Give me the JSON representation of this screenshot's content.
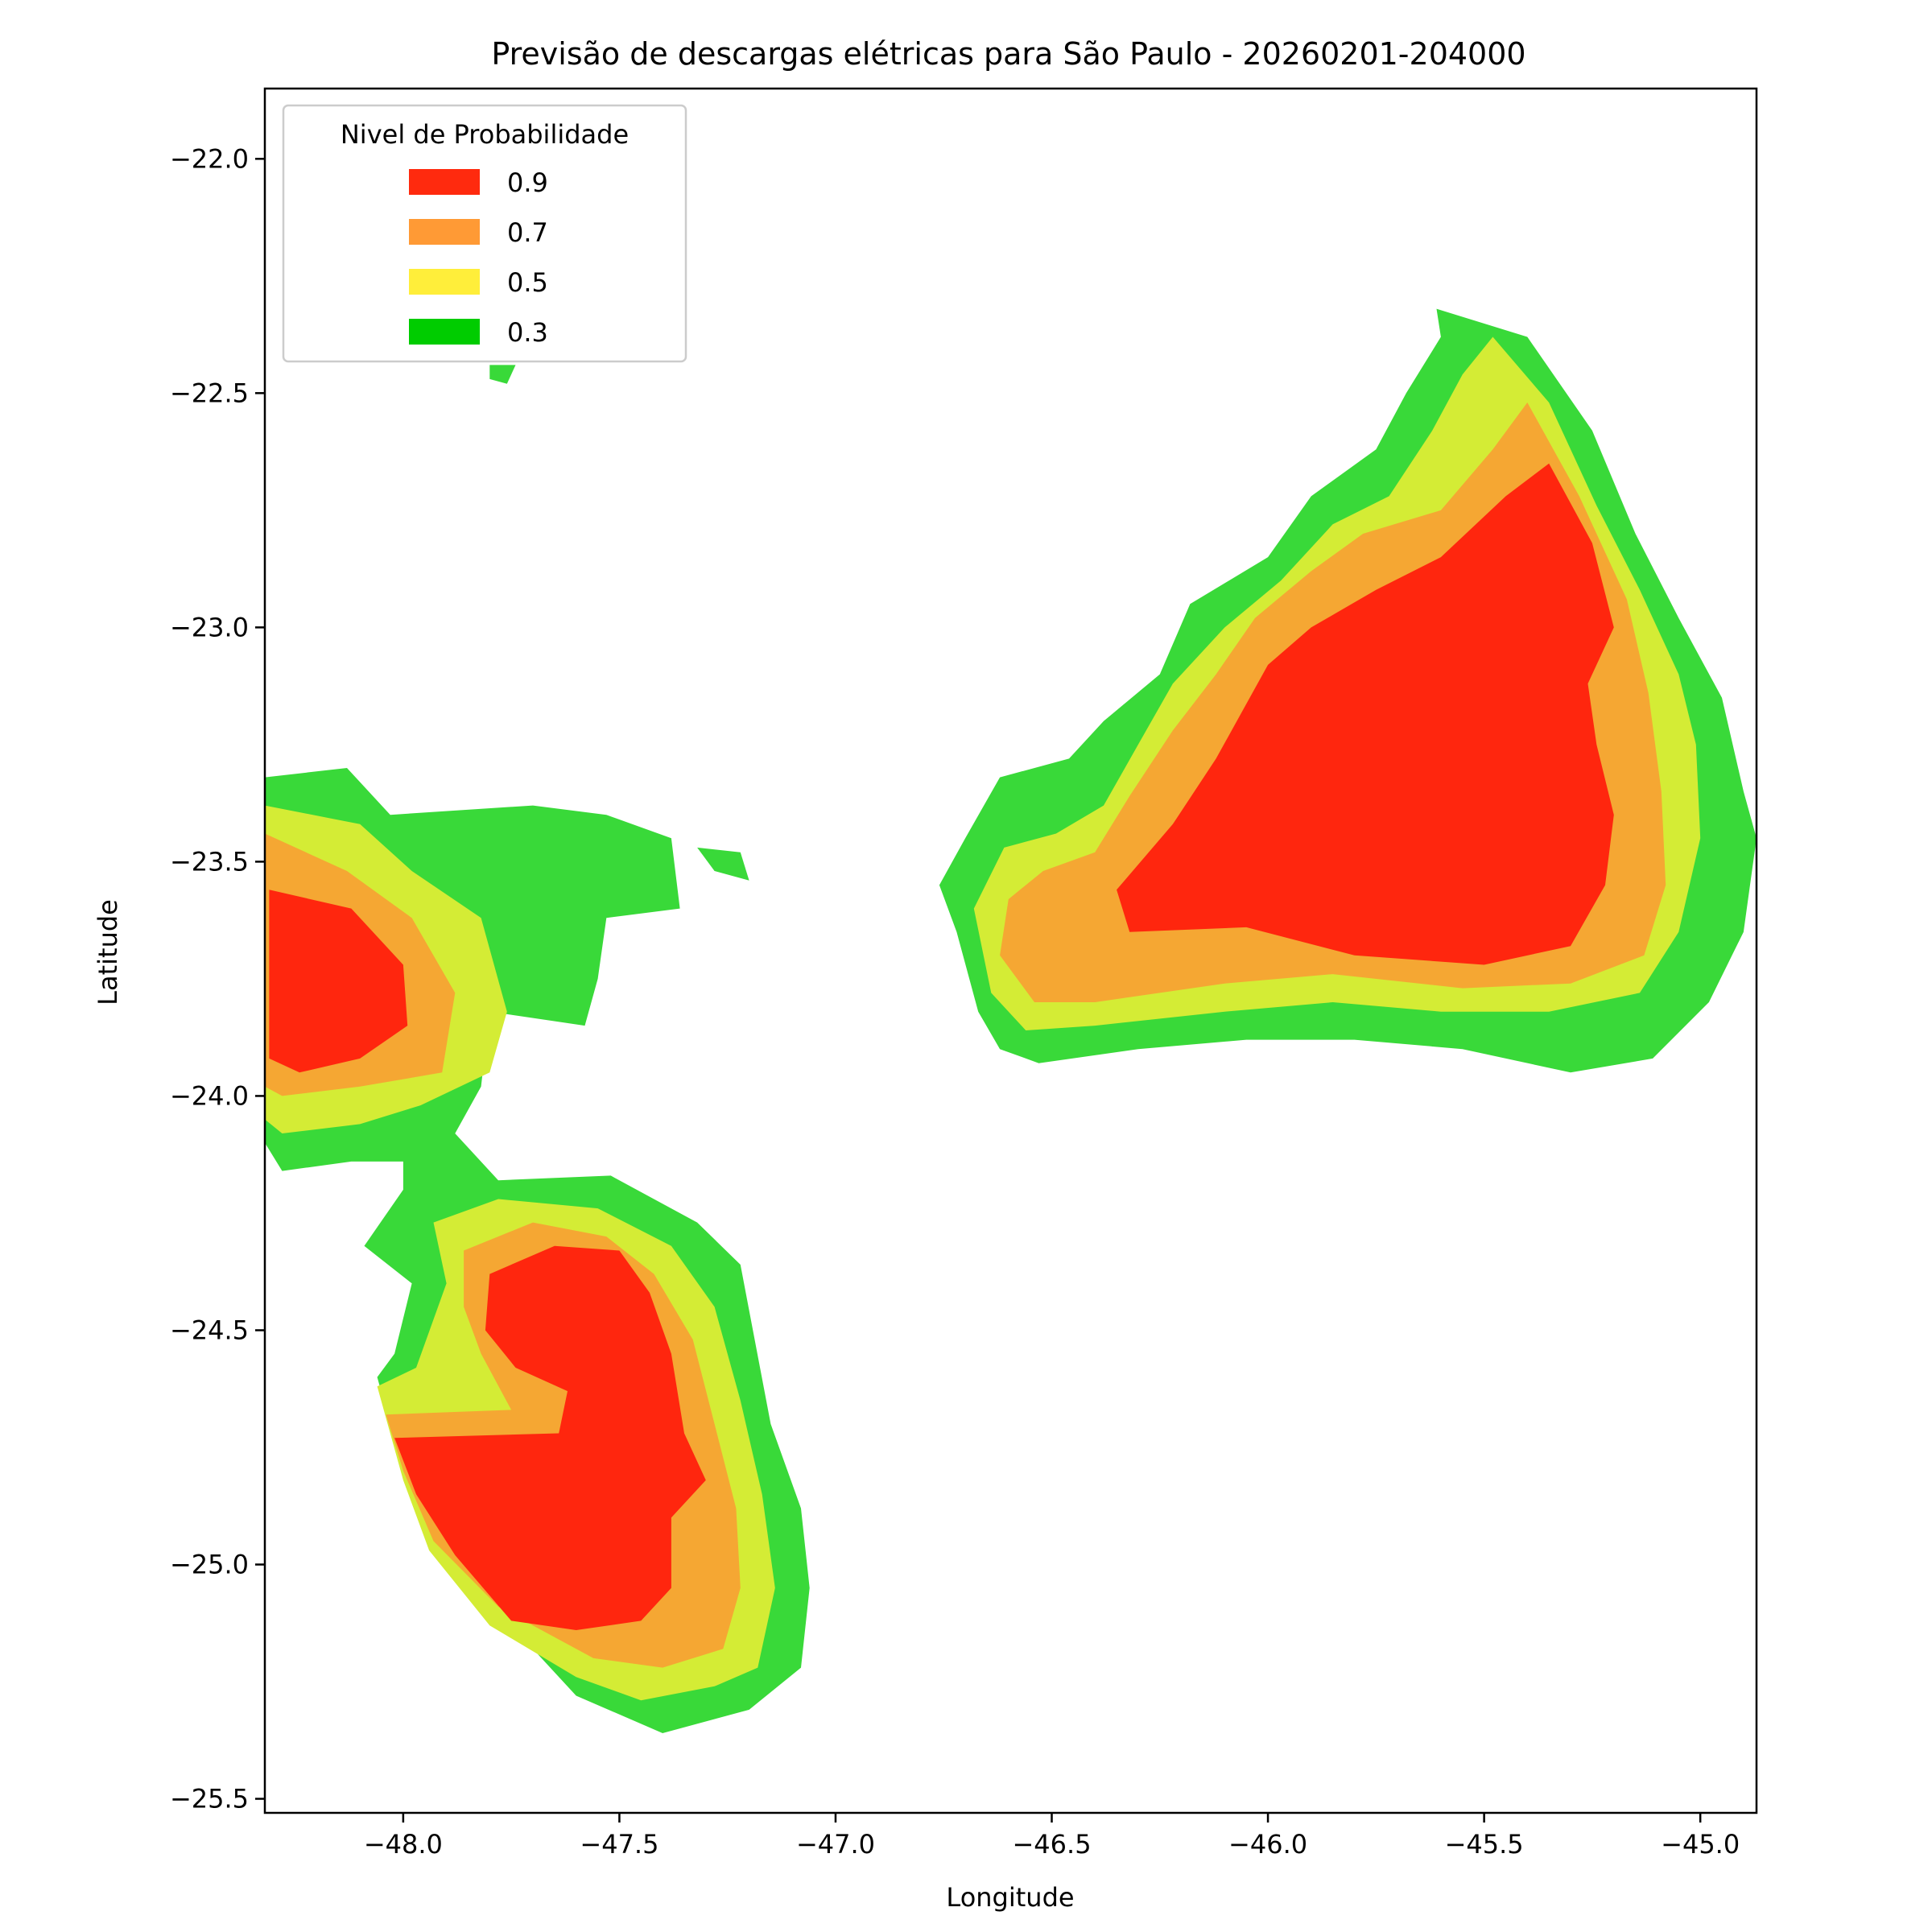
{
  "chart_data": {
    "type": "contour",
    "title": "Previsão de descargas elétricas para São Paulo - 20260201-204000",
    "xlabel": "Longitude",
    "ylabel": "Latitude",
    "xlim": [
      -48.32,
      -44.87
    ],
    "ylim": [
      -25.53,
      -21.85
    ],
    "xticks": [
      -48.0,
      -47.5,
      -47.0,
      -46.5,
      -46.0,
      -45.5,
      -45.0
    ],
    "xtick_labels": [
      "−48.0",
      "−47.5",
      "−47.0",
      "−46.5",
      "−46.0",
      "−45.5",
      "−45.0"
    ],
    "yticks": [
      -22.0,
      -22.5,
      -23.0,
      -23.5,
      -24.0,
      -24.5,
      -25.0,
      -25.5
    ],
    "ytick_labels": [
      "−22.0",
      "−22.5",
      "−23.0",
      "−23.5",
      "−24.0",
      "−24.5",
      "−25.0",
      "−25.5"
    ],
    "grid": false,
    "legend": {
      "title": "Nivel de Probabilidade",
      "placement": "upper-left",
      "entries": [
        {
          "label": "0.9",
          "color": "#ff2a0e"
        },
        {
          "label": "0.7",
          "color": "#ff9a35"
        },
        {
          "label": "0.5",
          "color": "#ffee3a"
        },
        {
          "label": "0.3",
          "color": "#00cc00"
        }
      ]
    },
    "fill_colors": {
      "0.3": "#39d939",
      "0.5": "#d4ec35",
      "0.7": "#f5a733",
      "0.9": "#ff260e"
    },
    "regions": [
      {
        "name": "southwest-cell",
        "levels": {
          "0.3": [
            [
              -48.32,
              -23.32
            ],
            [
              -48.13,
              -23.3
            ],
            [
              -48.03,
              -23.4
            ],
            [
              -47.7,
              -23.38
            ],
            [
              -47.53,
              -23.4
            ],
            [
              -47.38,
              -23.45
            ],
            [
              -47.36,
              -23.6
            ],
            [
              -47.53,
              -23.62
            ],
            [
              -47.55,
              -23.75
            ],
            [
              -47.58,
              -23.85
            ],
            [
              -47.8,
              -23.82
            ],
            [
              -47.82,
              -23.98
            ],
            [
              -47.88,
              -24.08
            ],
            [
              -47.78,
              -24.18
            ],
            [
              -47.52,
              -24.17
            ],
            [
              -47.32,
              -24.27
            ],
            [
              -47.22,
              -24.36
            ],
            [
              -47.15,
              -24.7
            ],
            [
              -47.08,
              -24.88
            ],
            [
              -47.06,
              -25.05
            ],
            [
              -47.08,
              -25.22
            ],
            [
              -47.2,
              -25.31
            ],
            [
              -47.4,
              -25.36
            ],
            [
              -47.6,
              -25.28
            ],
            [
              -47.78,
              -25.1
            ],
            [
              -47.91,
              -24.95
            ],
            [
              -48.0,
              -24.8
            ],
            [
              -48.06,
              -24.6
            ],
            [
              -48.02,
              -24.55
            ],
            [
              -47.98,
              -24.4
            ],
            [
              -48.09,
              -24.32
            ],
            [
              -48.0,
              -24.2
            ],
            [
              -48.0,
              -24.14
            ],
            [
              -48.12,
              -24.14
            ],
            [
              -48.28,
              -24.16
            ],
            [
              -48.32,
              -24.1
            ]
          ],
          "0.5": [
            [
              -48.32,
              -23.38
            ],
            [
              -48.1,
              -23.42
            ],
            [
              -47.98,
              -23.52
            ],
            [
              -47.82,
              -23.62
            ],
            [
              -47.76,
              -23.82
            ],
            [
              -47.8,
              -23.95
            ],
            [
              -47.96,
              -24.02
            ],
            [
              -48.1,
              -24.06
            ],
            [
              -48.28,
              -24.08
            ],
            [
              -48.32,
              -24.05
            ]
          ],
          "0.7": [
            [
              -48.32,
              -23.44
            ],
            [
              -48.13,
              -23.52
            ],
            [
              -47.98,
              -23.62
            ],
            [
              -47.88,
              -23.78
            ],
            [
              -47.91,
              -23.95
            ],
            [
              -48.1,
              -23.98
            ],
            [
              -48.28,
              -24.0
            ],
            [
              -48.32,
              -23.98
            ]
          ],
          "0.9": [
            [
              -48.31,
              -23.56
            ],
            [
              -48.12,
              -23.6
            ],
            [
              -48.0,
              -23.72
            ],
            [
              -47.99,
              -23.85
            ],
            [
              -48.1,
              -23.92
            ],
            [
              -48.24,
              -23.95
            ],
            [
              -48.31,
              -23.92
            ]
          ]
        }
      },
      {
        "name": "south-cell",
        "levels": {
          "0.5": [
            [
              -47.93,
              -24.27
            ],
            [
              -47.78,
              -24.22
            ],
            [
              -47.55,
              -24.24
            ],
            [
              -47.38,
              -24.32
            ],
            [
              -47.28,
              -24.45
            ],
            [
              -47.22,
              -24.65
            ],
            [
              -47.17,
              -24.85
            ],
            [
              -47.14,
              -25.05
            ],
            [
              -47.18,
              -25.22
            ],
            [
              -47.28,
              -25.26
            ],
            [
              -47.45,
              -25.29
            ],
            [
              -47.6,
              -25.24
            ],
            [
              -47.8,
              -25.13
            ],
            [
              -47.94,
              -24.97
            ],
            [
              -48.0,
              -24.82
            ],
            [
              -48.06,
              -24.62
            ],
            [
              -47.97,
              -24.58
            ],
            [
              -47.9,
              -24.4
            ]
          ],
          "0.7": [
            [
              -47.86,
              -24.33
            ],
            [
              -47.7,
              -24.27
            ],
            [
              -47.53,
              -24.3
            ],
            [
              -47.42,
              -24.38
            ],
            [
              -47.33,
              -24.52
            ],
            [
              -47.28,
              -24.7
            ],
            [
              -47.23,
              -24.88
            ],
            [
              -47.22,
              -25.05
            ],
            [
              -47.26,
              -25.18
            ],
            [
              -47.4,
              -25.22
            ],
            [
              -47.56,
              -25.2
            ],
            [
              -47.78,
              -25.09
            ],
            [
              -47.93,
              -24.95
            ],
            [
              -48.0,
              -24.8
            ],
            [
              -48.04,
              -24.68
            ],
            [
              -47.75,
              -24.67
            ],
            [
              -47.82,
              -24.55
            ],
            [
              -47.86,
              -24.45
            ]
          ],
          "0.9": [
            [
              -47.8,
              -24.38
            ],
            [
              -47.65,
              -24.32
            ],
            [
              -47.5,
              -24.33
            ],
            [
              -47.43,
              -24.42
            ],
            [
              -47.38,
              -24.55
            ],
            [
              -47.35,
              -24.72
            ],
            [
              -47.3,
              -24.82
            ],
            [
              -47.38,
              -24.9
            ],
            [
              -47.38,
              -25.05
            ],
            [
              -47.45,
              -25.12
            ],
            [
              -47.6,
              -25.14
            ],
            [
              -47.75,
              -25.12
            ],
            [
              -47.88,
              -24.98
            ],
            [
              -47.97,
              -24.85
            ],
            [
              -48.02,
              -24.73
            ],
            [
              -47.64,
              -24.72
            ],
            [
              -47.62,
              -24.63
            ],
            [
              -47.74,
              -24.58
            ],
            [
              -47.81,
              -24.5
            ]
          ]
        }
      },
      {
        "name": "east-cell",
        "levels": {
          "0.3": [
            [
              -45.61,
              -22.32
            ],
            [
              -45.4,
              -22.38
            ],
            [
              -45.25,
              -22.58
            ],
            [
              -45.15,
              -22.8
            ],
            [
              -45.05,
              -22.98
            ],
            [
              -44.95,
              -23.15
            ],
            [
              -44.9,
              -23.35
            ],
            [
              -44.87,
              -23.45
            ],
            [
              -44.9,
              -23.65
            ],
            [
              -44.98,
              -23.8
            ],
            [
              -45.11,
              -23.92
            ],
            [
              -45.3,
              -23.95
            ],
            [
              -45.55,
              -23.9
            ],
            [
              -45.8,
              -23.88
            ],
            [
              -46.05,
              -23.88
            ],
            [
              -46.3,
              -23.9
            ],
            [
              -46.53,
              -23.93
            ],
            [
              -46.62,
              -23.9
            ],
            [
              -46.67,
              -23.82
            ],
            [
              -46.72,
              -23.65
            ],
            [
              -46.76,
              -23.55
            ],
            [
              -46.7,
              -23.45
            ],
            [
              -46.62,
              -23.32
            ],
            [
              -46.46,
              -23.28
            ],
            [
              -46.38,
              -23.2
            ],
            [
              -46.25,
              -23.1
            ],
            [
              -46.18,
              -22.95
            ],
            [
              -46.0,
              -22.85
            ],
            [
              -45.9,
              -22.72
            ],
            [
              -45.75,
              -22.62
            ],
            [
              -45.68,
              -22.5
            ],
            [
              -45.6,
              -22.38
            ]
          ],
          "0.5": [
            [
              -45.48,
              -22.38
            ],
            [
              -45.35,
              -22.52
            ],
            [
              -45.24,
              -22.74
            ],
            [
              -45.14,
              -22.92
            ],
            [
              -45.05,
              -23.1
            ],
            [
              -45.01,
              -23.25
            ],
            [
              -45.0,
              -23.45
            ],
            [
              -45.05,
              -23.65
            ],
            [
              -45.14,
              -23.78
            ],
            [
              -45.35,
              -23.82
            ],
            [
              -45.6,
              -23.82
            ],
            [
              -45.85,
              -23.8
            ],
            [
              -46.1,
              -23.82
            ],
            [
              -46.4,
              -23.85
            ],
            [
              -46.56,
              -23.86
            ],
            [
              -46.64,
              -23.78
            ],
            [
              -46.68,
              -23.6
            ],
            [
              -46.61,
              -23.47
            ],
            [
              -46.49,
              -23.44
            ],
            [
              -46.38,
              -23.38
            ],
            [
              -46.3,
              -23.25
            ],
            [
              -46.22,
              -23.12
            ],
            [
              -46.1,
              -23.0
            ],
            [
              -45.97,
              -22.9
            ],
            [
              -45.85,
              -22.78
            ],
            [
              -45.72,
              -22.72
            ],
            [
              -45.62,
              -22.58
            ],
            [
              -45.55,
              -22.46
            ]
          ],
          "0.7": [
            [
              -45.4,
              -22.52
            ],
            [
              -45.28,
              -22.72
            ],
            [
              -45.17,
              -22.94
            ],
            [
              -45.12,
              -23.14
            ],
            [
              -45.09,
              -23.35
            ],
            [
              -45.08,
              -23.55
            ],
            [
              -45.13,
              -23.7
            ],
            [
              -45.3,
              -23.76
            ],
            [
              -45.55,
              -23.77
            ],
            [
              -45.85,
              -23.74
            ],
            [
              -46.1,
              -23.76
            ],
            [
              -46.4,
              -23.8
            ],
            [
              -46.54,
              -23.8
            ],
            [
              -46.62,
              -23.7
            ],
            [
              -46.6,
              -23.58
            ],
            [
              -46.52,
              -23.52
            ],
            [
              -46.4,
              -23.48
            ],
            [
              -46.32,
              -23.36
            ],
            [
              -46.22,
              -23.22
            ],
            [
              -46.12,
              -23.1
            ],
            [
              -46.03,
              -22.98
            ],
            [
              -45.9,
              -22.88
            ],
            [
              -45.78,
              -22.8
            ],
            [
              -45.6,
              -22.75
            ],
            [
              -45.48,
              -22.62
            ]
          ],
          "0.9": [
            [
              -45.35,
              -22.65
            ],
            [
              -45.25,
              -22.82
            ],
            [
              -45.2,
              -23.0
            ],
            [
              -45.26,
              -23.12
            ],
            [
              -45.24,
              -23.25
            ],
            [
              -45.2,
              -23.4
            ],
            [
              -45.22,
              -23.55
            ],
            [
              -45.3,
              -23.68
            ],
            [
              -45.5,
              -23.72
            ],
            [
              -45.8,
              -23.7
            ],
            [
              -46.05,
              -23.64
            ],
            [
              -46.32,
              -23.65
            ],
            [
              -46.35,
              -23.56
            ],
            [
              -46.22,
              -23.42
            ],
            [
              -46.12,
              -23.28
            ],
            [
              -46.0,
              -23.08
            ],
            [
              -45.9,
              -23.0
            ],
            [
              -45.75,
              -22.92
            ],
            [
              -45.6,
              -22.85
            ],
            [
              -45.45,
              -22.72
            ]
          ]
        }
      },
      {
        "name": "west-fringe",
        "levels": {
          "0.3": [
            [
              -47.32,
              -23.47
            ],
            [
              -47.22,
              -23.48
            ],
            [
              -47.2,
              -23.54
            ],
            [
              -47.28,
              -23.52
            ]
          ]
        }
      },
      {
        "name": "north-speck",
        "levels": {
          "0.3": [
            [
              -47.8,
              -22.44
            ],
            [
              -47.74,
              -22.44
            ],
            [
              -47.76,
              -22.48
            ],
            [
              -47.8,
              -22.47
            ]
          ]
        }
      }
    ]
  }
}
